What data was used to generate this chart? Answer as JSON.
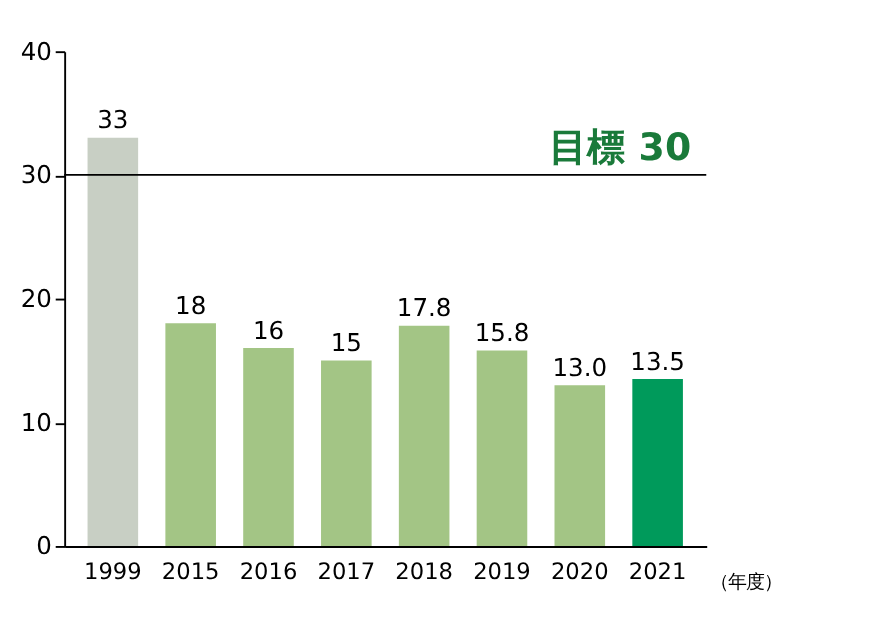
{
  "chart_data": {
    "type": "bar",
    "categories": [
      "1999",
      "2015",
      "2016",
      "2017",
      "2018",
      "2019",
      "2020",
      "2021"
    ],
    "values": [
      33,
      18,
      16,
      15,
      17.8,
      15.8,
      13.0,
      13.5
    ],
    "colors": [
      "#c8cfc4",
      "#a3c585",
      "#a3c585",
      "#a3c585",
      "#a3c585",
      "#a3c585",
      "#a3c585",
      "#009a5b"
    ],
    "value_labels": [
      "33",
      "18",
      "16",
      "15",
      "17.8",
      "15.8",
      "13.0",
      "13.5"
    ],
    "ylim": [
      0,
      40
    ],
    "yticks": [
      0,
      10,
      20,
      30,
      40
    ],
    "grid": false,
    "ref_lines": [
      {
        "axis": "y",
        "value": 30,
        "label": "目標 30"
      }
    ],
    "annotations": [
      "（年度）"
    ]
  }
}
